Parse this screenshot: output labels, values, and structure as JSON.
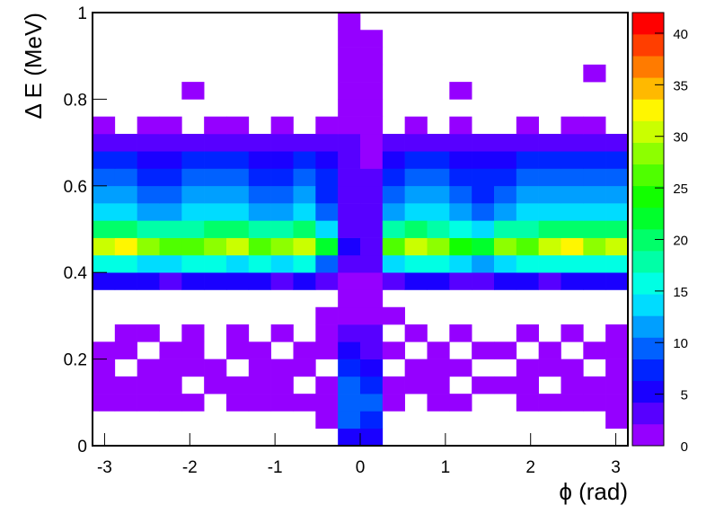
{
  "chart_data": {
    "type": "heatmap",
    "x_label": "ϕ (rad)",
    "y_label": "Δ E (MeV)",
    "xlim": [
      -3.14159,
      3.14159
    ],
    "ylim": [
      0,
      1
    ],
    "zlim": [
      0,
      42
    ],
    "xticks": [
      -3,
      -2,
      -1,
      0,
      1,
      2,
      3
    ],
    "yticks": [
      0,
      0.2,
      0.4,
      0.6,
      0.8,
      1
    ],
    "zticks": [
      0,
      5,
      10,
      15,
      20,
      25,
      30,
      35,
      40
    ],
    "colormap": "rainbow",
    "contours": 20,
    "z": [
      [
        0,
        0,
        0,
        0,
        0,
        0,
        0,
        0,
        0,
        0,
        0,
        6,
        5,
        0,
        0,
        0,
        0,
        0,
        0,
        0,
        0,
        0,
        0,
        0
      ],
      [
        0,
        0,
        0,
        0,
        0,
        0,
        0,
        0,
        0,
        0,
        1,
        9,
        8,
        0,
        0,
        0,
        0,
        0,
        0,
        0,
        0,
        0,
        0,
        1
      ],
      [
        1,
        1,
        1,
        1,
        1,
        0,
        1,
        1,
        1,
        1,
        1,
        10,
        9,
        1,
        0,
        1,
        1,
        0,
        0,
        1,
        1,
        1,
        1,
        1
      ],
      [
        1,
        1,
        1,
        1,
        0,
        1,
        1,
        1,
        1,
        0,
        1,
        9,
        7,
        1,
        1,
        1,
        0,
        1,
        1,
        1,
        0,
        1,
        1,
        1
      ],
      [
        1,
        0,
        1,
        1,
        1,
        1,
        0,
        1,
        1,
        1,
        0,
        7,
        6,
        0,
        1,
        1,
        1,
        0,
        0,
        1,
        1,
        1,
        0,
        1
      ],
      [
        1,
        1,
        0,
        1,
        1,
        0,
        1,
        1,
        0,
        1,
        1,
        5,
        4,
        1,
        0,
        1,
        0,
        1,
        1,
        0,
        1,
        0,
        1,
        1
      ],
      [
        0,
        1,
        1,
        0,
        1,
        0,
        1,
        0,
        1,
        0,
        1,
        3,
        3,
        0,
        1,
        0,
        1,
        0,
        0,
        1,
        0,
        1,
        0,
        1
      ],
      [
        0,
        0,
        0,
        0,
        0,
        0,
        0,
        0,
        0,
        0,
        1,
        2,
        2,
        1,
        0,
        0,
        0,
        0,
        0,
        0,
        0,
        0,
        0,
        0
      ],
      [
        0,
        0,
        0,
        0,
        0,
        0,
        0,
        0,
        0,
        0,
        0,
        1,
        1,
        0,
        0,
        0,
        0,
        0,
        0,
        0,
        0,
        0,
        0,
        0
      ],
      [
        5,
        6,
        5,
        4,
        5,
        6,
        5,
        5,
        4,
        5,
        3,
        1,
        1,
        4,
        5,
        5,
        4,
        4,
        5,
        5,
        4,
        5,
        6,
        5
      ],
      [
        15,
        16,
        14,
        14,
        15,
        16,
        14,
        15,
        14,
        15,
        10,
        4,
        3,
        13,
        15,
        16,
        14,
        12,
        14,
        15,
        15,
        16,
        15,
        16
      ],
      [
        30,
        33,
        28,
        27,
        26,
        29,
        31,
        27,
        28,
        30,
        22,
        5,
        4,
        27,
        30,
        29,
        25,
        22,
        28,
        27,
        30,
        32,
        29,
        31
      ],
      [
        19,
        20,
        18,
        17,
        18,
        19,
        19,
        17,
        18,
        19,
        14,
        4,
        4,
        17,
        19,
        18,
        16,
        14,
        18,
        18,
        19,
        20,
        19,
        20
      ],
      [
        13,
        14,
        12,
        12,
        13,
        13,
        13,
        12,
        12,
        13,
        10,
        4,
        3,
        12,
        13,
        13,
        11,
        10,
        12,
        13,
        13,
        14,
        13,
        14
      ],
      [
        11,
        12,
        10,
        10,
        11,
        11,
        11,
        10,
        10,
        11,
        8,
        3,
        3,
        10,
        11,
        11,
        9,
        8,
        10,
        11,
        11,
        12,
        11,
        12
      ],
      [
        9,
        9,
        8,
        8,
        9,
        9,
        9,
        8,
        8,
        9,
        7,
        3,
        3,
        8,
        9,
        9,
        8,
        7,
        8,
        9,
        9,
        9,
        9,
        9
      ],
      [
        7,
        7,
        6,
        6,
        7,
        7,
        7,
        6,
        6,
        7,
        5,
        3,
        2,
        6,
        7,
        7,
        6,
        5,
        6,
        7,
        7,
        7,
        7,
        7
      ],
      [
        4,
        4,
        3,
        4,
        4,
        4,
        4,
        3,
        4,
        4,
        3,
        3,
        2,
        3,
        4,
        4,
        3,
        3,
        4,
        4,
        4,
        4,
        4,
        4
      ],
      [
        1,
        0,
        1,
        1,
        0,
        1,
        1,
        0,
        1,
        0,
        1,
        2,
        2,
        0,
        1,
        0,
        1,
        0,
        0,
        1,
        0,
        1,
        1,
        0
      ],
      [
        0,
        0,
        0,
        0,
        0,
        0,
        0,
        0,
        0,
        0,
        0,
        2,
        2,
        0,
        0,
        0,
        0,
        0,
        0,
        0,
        0,
        0,
        0,
        0
      ],
      [
        0,
        0,
        0,
        0,
        1,
        0,
        0,
        0,
        0,
        0,
        0,
        2,
        1,
        0,
        0,
        0,
        1,
        0,
        0,
        0,
        0,
        0,
        0,
        0
      ],
      [
        0,
        0,
        0,
        0,
        0,
        0,
        0,
        0,
        0,
        0,
        0,
        2,
        1,
        0,
        0,
        0,
        0,
        0,
        0,
        0,
        0,
        0,
        1,
        0
      ],
      [
        0,
        0,
        0,
        0,
        0,
        0,
        0,
        0,
        0,
        0,
        0,
        1,
        1,
        0,
        0,
        0,
        0,
        0,
        0,
        0,
        0,
        0,
        0,
        0
      ],
      [
        0,
        0,
        0,
        0,
        0,
        0,
        0,
        0,
        0,
        0,
        0,
        1,
        1,
        0,
        0,
        0,
        0,
        0,
        0,
        0,
        0,
        0,
        0,
        0
      ],
      [
        0,
        0,
        0,
        0,
        0,
        0,
        0,
        0,
        0,
        0,
        0,
        1,
        0,
        0,
        0,
        0,
        0,
        0,
        0,
        0,
        0,
        0,
        0,
        0
      ]
    ]
  }
}
